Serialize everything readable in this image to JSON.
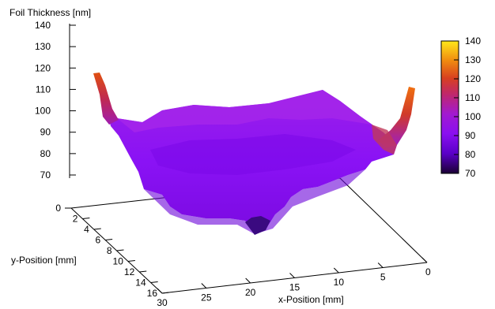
{
  "chart_data": {
    "type": "surface",
    "zlabel": "Foil Thickness [nm]",
    "xlabel": "x-Position [mm]",
    "ylabel": "y-Position [mm]",
    "z_ticks": [
      "140",
      "130",
      "120",
      "110",
      "100",
      "90",
      "80",
      "70"
    ],
    "z_floor_tick": "0",
    "x_ticks": [
      "30",
      "25",
      "20",
      "15",
      "10",
      "5",
      "0"
    ],
    "y_ticks": [
      "2",
      "4",
      "6",
      "8",
      "10",
      "12",
      "14",
      "16"
    ],
    "zlim": [
      70,
      140
    ],
    "xlim": [
      0,
      30
    ],
    "ylim": [
      0,
      16
    ],
    "colorbar": {
      "ticks": [
        "140",
        "130",
        "120",
        "110",
        "100",
        "90",
        "80",
        "70"
      ],
      "range": [
        70,
        140
      ]
    },
    "surface_profile": {
      "plateau_thickness": 95,
      "edge_spikes": [
        {
          "x": 30,
          "y": 0,
          "z": 118
        },
        {
          "x": 0,
          "y": 0,
          "z": 112
        }
      ],
      "dip": {
        "x": 21,
        "y": 16,
        "z": 72
      }
    }
  }
}
